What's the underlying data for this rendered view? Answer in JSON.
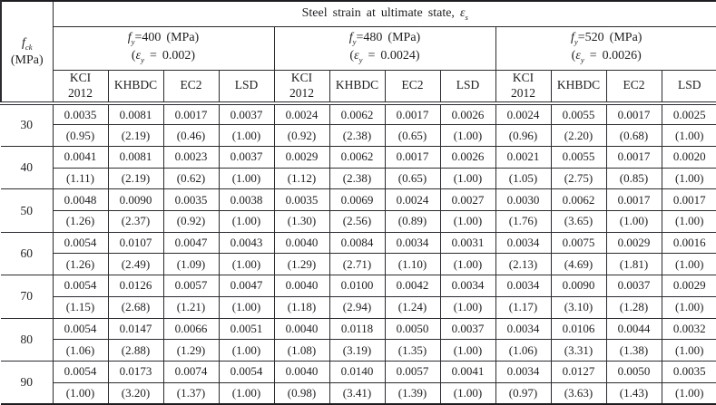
{
  "table": {
    "title": {
      "pre": "Steel strain at ultimate state, ",
      "sym": "ε",
      "sub": "s"
    },
    "corner": {
      "f_sym": "f",
      "f_sub": "ck",
      "line2": "(MPa)"
    },
    "groups": [
      {
        "f_sym": "f",
        "f_sub": "y",
        "f_rest": "=400 (MPa)",
        "e_pre": "(",
        "e_sym": "ε",
        "e_sub": "y",
        "e_rest": " = 0.002)"
      },
      {
        "f_sym": "f",
        "f_sub": "y",
        "f_rest": "=480 (MPa)",
        "e_pre": "(",
        "e_sym": "ε",
        "e_sub": "y",
        "e_rest": " = 0.0024)"
      },
      {
        "f_sym": "f",
        "f_sub": "y",
        "f_rest": "=520 (MPa)",
        "e_pre": "(",
        "e_sym": "ε",
        "e_sub": "y",
        "e_rest": " = 0.0026)"
      }
    ],
    "methods": [
      "KCI\n2012",
      "KHBDC",
      "EC2",
      "LSD"
    ],
    "rows": [
      {
        "fck": "30",
        "values": [
          "0.0035",
          "0.0081",
          "0.0017",
          "0.0037",
          "0.0024",
          "0.0062",
          "0.0017",
          "0.0026",
          "0.0024",
          "0.0055",
          "0.0017",
          "0.0025"
        ],
        "ratios": [
          "(0.95)",
          "(2.19)",
          "(0.46)",
          "(1.00)",
          "(0.92)",
          "(2.38)",
          "(0.65)",
          "(1.00)",
          "(0.96)",
          "(2.20)",
          "(0.68)",
          "(1.00)"
        ]
      },
      {
        "fck": "40",
        "values": [
          "0.0041",
          "0.0081",
          "0.0023",
          "0.0037",
          "0.0029",
          "0.0062",
          "0.0017",
          "0.0026",
          "0.0021",
          "0.0055",
          "0.0017",
          "0.0020"
        ],
        "ratios": [
          "(1.11)",
          "(2.19)",
          "(0.62)",
          "(1.00)",
          "(1.12)",
          "(2.38)",
          "(0.65)",
          "(1.00)",
          "(1.05)",
          "(2.75)",
          "(0.85)",
          "(1.00)"
        ]
      },
      {
        "fck": "50",
        "values": [
          "0.0048",
          "0.0090",
          "0.0035",
          "0.0038",
          "0.0035",
          "0.0069",
          "0.0024",
          "0.0027",
          "0.0030",
          "0.0062",
          "0.0017",
          "0.0017"
        ],
        "ratios": [
          "(1.26)",
          "(2.37)",
          "(0.92)",
          "(1.00)",
          "(1.30)",
          "(2.56)",
          "(0.89)",
          "(1.00)",
          "(1.76)",
          "(3.65)",
          "(1.00)",
          "(1.00)"
        ]
      },
      {
        "fck": "60",
        "values": [
          "0.0054",
          "0.0107",
          "0.0047",
          "0.0043",
          "0.0040",
          "0.0084",
          "0.0034",
          "0.0031",
          "0.0034",
          "0.0075",
          "0.0029",
          "0.0016"
        ],
        "ratios": [
          "(1.26)",
          "(2.49)",
          "(1.09)",
          "(1.00)",
          "(1.29)",
          "(2.71)",
          "(1.10)",
          "(1.00)",
          "(2.13)",
          "(4.69)",
          "(1.81)",
          "(1.00)"
        ]
      },
      {
        "fck": "70",
        "values": [
          "0.0054",
          "0.0126",
          "0.0057",
          "0.0047",
          "0.0040",
          "0.0100",
          "0.0042",
          "0.0034",
          "0.0034",
          "0.0090",
          "0.0037",
          "0.0029"
        ],
        "ratios": [
          "(1.15)",
          "(2.68)",
          "(1.21)",
          "(1.00)",
          "(1.18)",
          "(2.94)",
          "(1.24)",
          "(1.00)",
          "(1.17)",
          "(3.10)",
          "(1.28)",
          "(1.00)"
        ]
      },
      {
        "fck": "80",
        "values": [
          "0.0054",
          "0.0147",
          "0.0066",
          "0.0051",
          "0.0040",
          "0.0118",
          "0.0050",
          "0.0037",
          "0.0034",
          "0.0106",
          "0.0044",
          "0.0032"
        ],
        "ratios": [
          "(1.06)",
          "(2.88)",
          "(1.29)",
          "(1.00)",
          "(1.08)",
          "(3.19)",
          "(1.35)",
          "(1.00)",
          "(1.06)",
          "(3.31)",
          "(1.38)",
          "(1.00)"
        ]
      },
      {
        "fck": "90",
        "values": [
          "0.0054",
          "0.0173",
          "0.0074",
          "0.0054",
          "0.0040",
          "0.0140",
          "0.0057",
          "0.0041",
          "0.0034",
          "0.0127",
          "0.0050",
          "0.0035"
        ],
        "ratios": [
          "(1.00)",
          "(3.20)",
          "(1.37)",
          "(1.00)",
          "(0.98)",
          "(3.41)",
          "(1.39)",
          "(1.00)",
          "(0.97)",
          "(3.63)",
          "(1.43)",
          "(1.00)"
        ]
      }
    ]
  }
}
